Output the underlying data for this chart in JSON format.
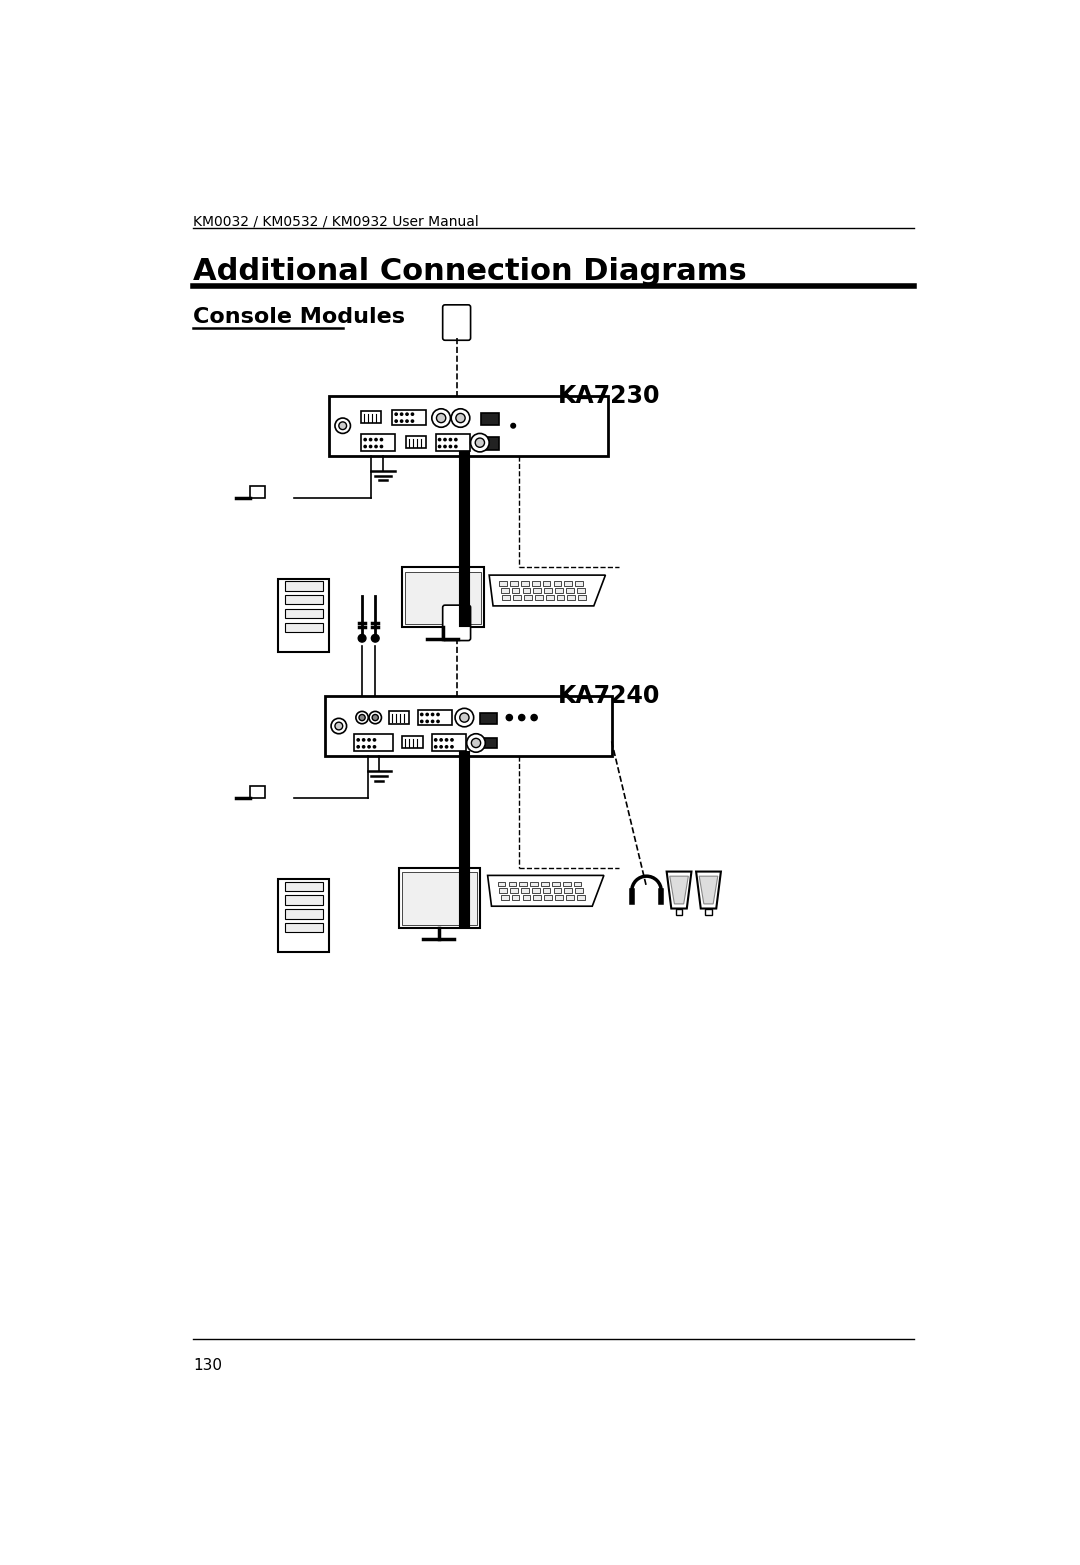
{
  "page_header": "KM0032 / KM0532 / KM0932 User Manual",
  "main_title": "Additional Connection Diagrams",
  "section_title": "Console Modules",
  "label_ka7230": "KA7230",
  "label_ka7240": "KA7240",
  "page_number": "130",
  "bg_color": "#ffffff",
  "text_color": "#000000",
  "header_fontsize": 10,
  "title_fontsize": 22,
  "section_fontsize": 16,
  "label_fontsize": 14
}
